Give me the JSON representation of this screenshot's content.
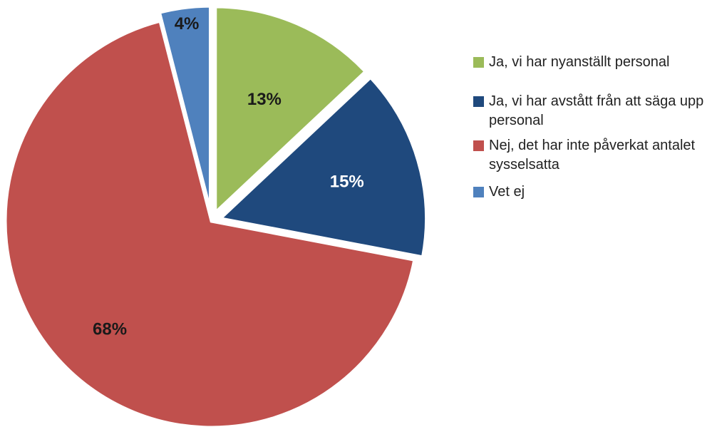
{
  "chart_data": {
    "type": "pie",
    "title": "",
    "slices": [
      {
        "label": "Ja, vi har nyanställt personal",
        "value": 13,
        "value_label": "13%",
        "color": "#9BBB59",
        "label_color": "#1a1a1a"
      },
      {
        "label": "Ja, vi har avstått från att säga upp personal",
        "value": 15,
        "value_label": "15%",
        "color": "#1F497D",
        "label_color": "#ffffff"
      },
      {
        "label": "Nej, det har inte påverkat antalet sysselsatta",
        "value": 68,
        "value_label": "68%",
        "color": "#C0504D",
        "label_color": "#1a1a1a"
      },
      {
        "label": "Vet ej",
        "value": 4,
        "value_label": "4%",
        "color": "#4F81BD",
        "label_color": "#1a1a1a"
      }
    ],
    "legend": {
      "position": "right",
      "items": [
        {
          "text": "Ja, vi har nyanställt personal",
          "color": "#9BBB59"
        },
        {
          "text": "Ja, vi har avstått från att säga upp personal",
          "color": "#1F497D"
        },
        {
          "text": "Nej, det har inte påverkat antalet sysselsatta",
          "color": "#C0504D"
        },
        {
          "text": "Vet ej",
          "color": "#4F81BD"
        }
      ]
    },
    "exploded": true
  }
}
